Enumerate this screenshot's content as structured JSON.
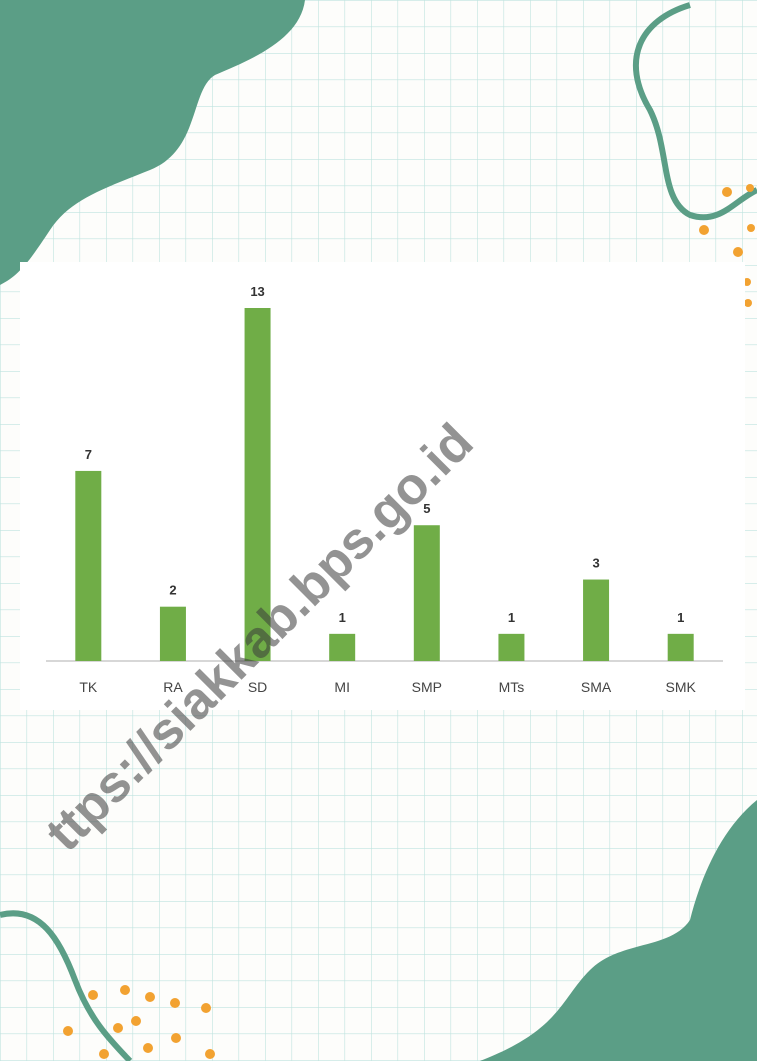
{
  "chart_data": {
    "type": "bar",
    "categories": [
      "TK",
      "RA",
      "SD",
      "MI",
      "SMP",
      "MTs",
      "SMA",
      "SMK"
    ],
    "values": [
      7,
      2,
      13,
      1,
      5,
      1,
      3,
      1
    ],
    "color": "#70ad47"
  },
  "watermark": "ttps://siakkab.bps.go.id"
}
